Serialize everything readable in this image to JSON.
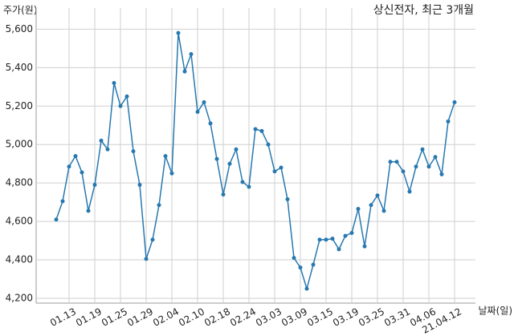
{
  "chart_data": {
    "type": "line",
    "title": "상신전자, 최근 3개월",
    "y_label": "주가(원)",
    "x_label": "날짜(일)",
    "categories": [
      null,
      null,
      "01.13",
      null,
      null,
      null,
      "01.19",
      null,
      null,
      null,
      "01.25",
      null,
      null,
      null,
      "01.29",
      null,
      null,
      null,
      "02.04",
      null,
      null,
      null,
      "02.10",
      null,
      null,
      null,
      "02.18",
      null,
      null,
      null,
      "02.24",
      null,
      null,
      null,
      "03.03",
      null,
      null,
      null,
      "03.09",
      null,
      null,
      null,
      "03.15",
      null,
      null,
      null,
      "03.19",
      null,
      null,
      null,
      "03.25",
      null,
      null,
      null,
      "03.31",
      null,
      null,
      null,
      "04.06",
      null,
      null,
      null,
      "21.04.12"
    ],
    "series": [
      {
        "color": "#2878b0",
        "values": [
          4610,
          4705,
          4885,
          4940,
          4855,
          4655,
          4790,
          5020,
          4975,
          5320,
          5200,
          5250,
          4965,
          4790,
          4405,
          4505,
          4685,
          4940,
          4850,
          5580,
          5380,
          5470,
          5170,
          5220,
          5110,
          4925,
          4740,
          4900,
          4975,
          4805,
          4780,
          5080,
          5070,
          5000,
          4860,
          4880,
          4715,
          4410,
          4360,
          4250,
          4375,
          4505,
          4505,
          4510,
          4455,
          4525,
          4540,
          4665,
          4470,
          4685,
          4735,
          4655,
          4910,
          4910,
          4860,
          4755,
          4885,
          4975,
          4885,
          4935,
          4845,
          5120,
          5220
        ]
      }
    ],
    "ylim": [
      4175,
      5710
    ],
    "yticks": [
      {
        "value": 4200,
        "label": "4,200"
      },
      {
        "value": 4400,
        "label": "4,400"
      },
      {
        "value": 4600,
        "label": "4,600"
      },
      {
        "value": 4800,
        "label": "4,800"
      },
      {
        "value": 5000,
        "label": "5,000"
      },
      {
        "value": 5200,
        "label": "5,200"
      },
      {
        "value": 5400,
        "label": "5,400"
      },
      {
        "value": 5600,
        "label": "5,600"
      }
    ],
    "grid": true
  }
}
